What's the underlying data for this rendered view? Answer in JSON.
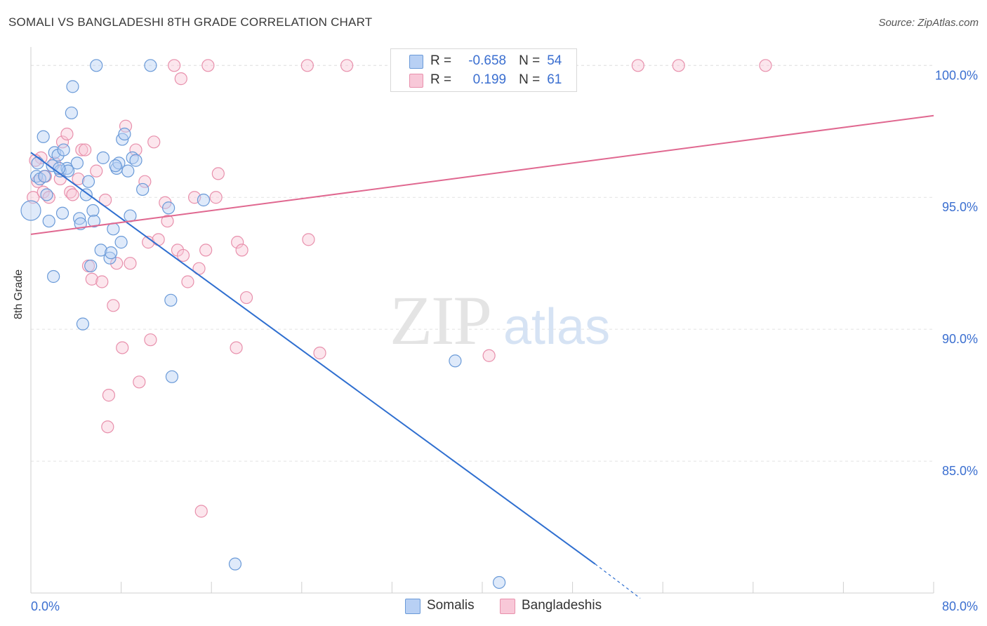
{
  "header": {
    "title": "SOMALI VS BANGLADESHI 8TH GRADE CORRELATION CHART",
    "source": "Source: ZipAtlas.com"
  },
  "colors": {
    "somali_fill": "#b8d0f4",
    "somali_stroke": "#6a9ad8",
    "somali_line": "#2f6fd0",
    "bangladeshi_fill": "#f8c8d8",
    "bangladeshi_stroke": "#e890ac",
    "bangladeshi_line": "#e06890",
    "value_text": "#3b6fd0"
  },
  "legend": {
    "rows": [
      {
        "r_label": "R =",
        "r_value": "-0.658",
        "n_label": "N =",
        "n_value": "54"
      },
      {
        "r_label": "R =",
        "r_value": "0.199",
        "n_label": "N =",
        "n_value": "61"
      }
    ]
  },
  "bottom_legend": {
    "somalis": "Somalis",
    "bangladeshis": "Bangladeshis"
  },
  "watermark": {
    "zip": "ZIP",
    "atlas": "atlas"
  },
  "chart_data": {
    "type": "scatter",
    "title": "SOMALI VS BANGLADESHI 8TH GRADE CORRELATION CHART",
    "xlabel": "",
    "ylabel": "8th Grade",
    "xlim": [
      0,
      80
    ],
    "ylim": [
      80,
      100.7
    ],
    "x_tick_labels": [
      "0.0%",
      "80.0%"
    ],
    "y_ticks": [
      85,
      90,
      95,
      100
    ],
    "y_tick_labels": [
      "85.0%",
      "90.0%",
      "95.0%",
      "100.0%"
    ],
    "grid": true,
    "series": [
      {
        "name": "Somalis",
        "R": -0.658,
        "N": 54,
        "trend": {
          "x0": 0,
          "y0": 96.7,
          "x1": 50,
          "y1": 81.1,
          "dashed_to_x": 54,
          "dashed_to_y": 79.8
        },
        "points": [
          [
            0.0,
            94.5
          ],
          [
            0.5,
            95.8
          ],
          [
            0.6,
            96.3
          ],
          [
            0.8,
            95.7
          ],
          [
            1.1,
            97.3
          ],
          [
            1.2,
            95.8
          ],
          [
            1.4,
            95.1
          ],
          [
            1.6,
            94.1
          ],
          [
            1.9,
            96.2
          ],
          [
            2.0,
            92.0
          ],
          [
            2.1,
            96.7
          ],
          [
            2.4,
            96.6
          ],
          [
            2.6,
            96.0
          ],
          [
            2.8,
            94.4
          ],
          [
            2.9,
            96.8
          ],
          [
            3.2,
            96.1
          ],
          [
            3.3,
            96.0
          ],
          [
            3.6,
            98.2
          ],
          [
            3.7,
            99.2
          ],
          [
            4.1,
            96.3
          ],
          [
            4.3,
            94.2
          ],
          [
            4.4,
            94.0
          ],
          [
            4.6,
            90.2
          ],
          [
            4.9,
            95.1
          ],
          [
            5.1,
            95.6
          ],
          [
            5.3,
            92.4
          ],
          [
            5.5,
            94.5
          ],
          [
            5.6,
            94.1
          ],
          [
            5.8,
            100.0
          ],
          [
            6.2,
            93.0
          ],
          [
            6.4,
            96.5
          ],
          [
            7.0,
            92.7
          ],
          [
            7.1,
            92.9
          ],
          [
            7.3,
            93.8
          ],
          [
            7.6,
            96.1
          ],
          [
            7.8,
            96.3
          ],
          [
            8.0,
            93.3
          ],
          [
            8.1,
            97.2
          ],
          [
            8.3,
            97.4
          ],
          [
            8.6,
            96.0
          ],
          [
            8.8,
            94.3
          ],
          [
            9.0,
            96.5
          ],
          [
            9.3,
            96.4
          ],
          [
            9.9,
            95.3
          ],
          [
            10.6,
            100.0
          ],
          [
            12.2,
            94.6
          ],
          [
            12.4,
            91.1
          ],
          [
            12.5,
            88.2
          ],
          [
            15.3,
            94.9
          ],
          [
            18.1,
            81.1
          ],
          [
            37.6,
            88.8
          ],
          [
            41.5,
            80.4
          ],
          [
            2.5,
            96.1
          ],
          [
            7.5,
            96.2
          ]
        ]
      },
      {
        "name": "Bangladeshis",
        "R": 0.199,
        "N": 61,
        "trend": {
          "x0": 0,
          "y0": 93.6,
          "x1": 80,
          "y1": 98.1
        },
        "points": [
          [
            0.2,
            95.0
          ],
          [
            0.6,
            95.6
          ],
          [
            0.9,
            96.5
          ],
          [
            1.1,
            95.2
          ],
          [
            1.3,
            95.8
          ],
          [
            1.6,
            95.0
          ],
          [
            2.1,
            96.3
          ],
          [
            2.6,
            95.7
          ],
          [
            2.8,
            97.1
          ],
          [
            3.2,
            97.4
          ],
          [
            3.5,
            95.2
          ],
          [
            3.7,
            95.1
          ],
          [
            4.2,
            95.7
          ],
          [
            4.5,
            96.8
          ],
          [
            4.8,
            96.8
          ],
          [
            5.1,
            92.4
          ],
          [
            5.4,
            91.9
          ],
          [
            5.8,
            96.0
          ],
          [
            6.3,
            91.8
          ],
          [
            6.6,
            94.9
          ],
          [
            6.9,
            87.5
          ],
          [
            6.8,
            86.3
          ],
          [
            7.3,
            90.9
          ],
          [
            7.6,
            92.5
          ],
          [
            8.1,
            89.3
          ],
          [
            8.4,
            97.7
          ],
          [
            8.8,
            92.5
          ],
          [
            9.3,
            96.8
          ],
          [
            9.6,
            88.0
          ],
          [
            10.1,
            95.6
          ],
          [
            10.4,
            93.3
          ],
          [
            10.6,
            89.6
          ],
          [
            10.9,
            97.1
          ],
          [
            11.3,
            93.4
          ],
          [
            11.9,
            94.8
          ],
          [
            12.1,
            94.1
          ],
          [
            12.7,
            100.0
          ],
          [
            13.0,
            93.0
          ],
          [
            13.3,
            99.5
          ],
          [
            13.5,
            92.8
          ],
          [
            13.9,
            91.8
          ],
          [
            14.5,
            95.0
          ],
          [
            14.9,
            92.3
          ],
          [
            15.1,
            83.1
          ],
          [
            15.5,
            93.0
          ],
          [
            15.7,
            100.0
          ],
          [
            16.4,
            95.0
          ],
          [
            16.6,
            95.9
          ],
          [
            18.2,
            89.3
          ],
          [
            18.3,
            93.3
          ],
          [
            18.7,
            93.0
          ],
          [
            19.1,
            91.2
          ],
          [
            24.5,
            100.0
          ],
          [
            24.6,
            93.4
          ],
          [
            25.6,
            89.1
          ],
          [
            28.0,
            100.0
          ],
          [
            40.6,
            89.0
          ],
          [
            53.8,
            100.0
          ],
          [
            57.4,
            100.0
          ],
          [
            65.1,
            100.0
          ],
          [
            0.4,
            96.4
          ]
        ]
      }
    ]
  }
}
